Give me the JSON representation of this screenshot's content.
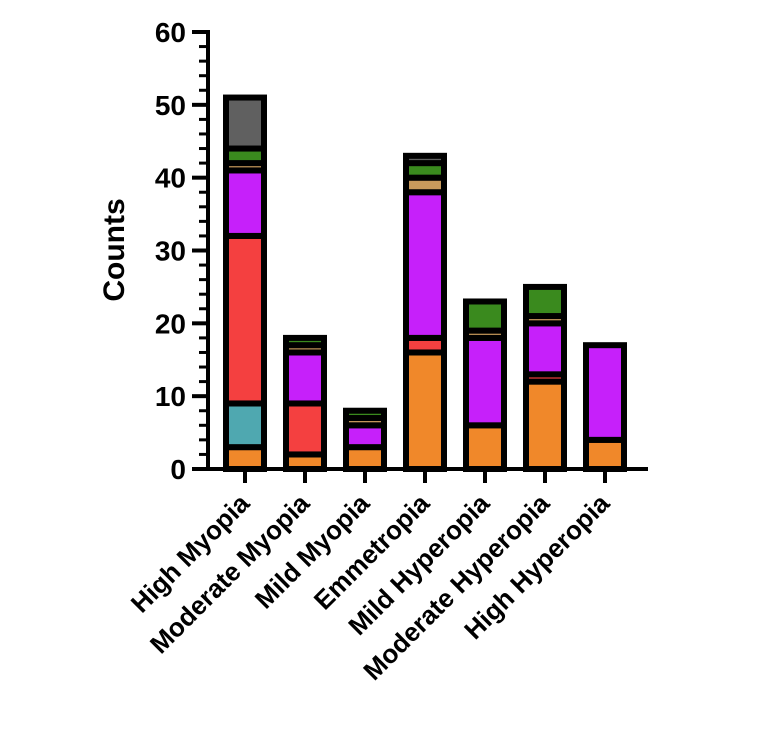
{
  "chart_data": {
    "type": "bar",
    "stacked": true,
    "title": "",
    "xlabel": "",
    "ylabel": "Counts",
    "ylim": [
      0,
      60
    ],
    "yticks": [
      0,
      10,
      20,
      30,
      40,
      50,
      60
    ],
    "minor_tick_step": 2,
    "grid": false,
    "legend": "none",
    "categories": [
      "High Myopia",
      "Moderate Myopia",
      "Mild Myopia",
      "Emmetropia",
      "Mild Hyperopia",
      "Moderate Hyperopia",
      "High Hyperopia"
    ],
    "series": [
      {
        "key": "s1",
        "color": "#F0882A",
        "values": [
          3,
          2,
          3,
          16,
          6,
          12,
          4
        ]
      },
      {
        "key": "s2",
        "color": "#4FA8B0",
        "values": [
          6,
          0,
          0,
          0,
          0,
          0,
          0
        ]
      },
      {
        "key": "s3",
        "color": "#F44040",
        "values": [
          23,
          7,
          0,
          2,
          0,
          1,
          0
        ]
      },
      {
        "key": "s4",
        "color": "#C620FA",
        "values": [
          9,
          7,
          3,
          20,
          12,
          7,
          13
        ]
      },
      {
        "key": "s5",
        "color": "#C99A5C",
        "values": [
          1,
          1,
          1,
          2,
          1,
          1,
          0
        ]
      },
      {
        "key": "s6",
        "color": "#3A8A1E",
        "values": [
          2,
          1,
          1,
          2,
          4,
          4,
          0
        ]
      },
      {
        "key": "s7",
        "color": "#606060",
        "values": [
          7,
          0,
          0,
          1,
          0,
          0,
          0
        ]
      }
    ]
  }
}
